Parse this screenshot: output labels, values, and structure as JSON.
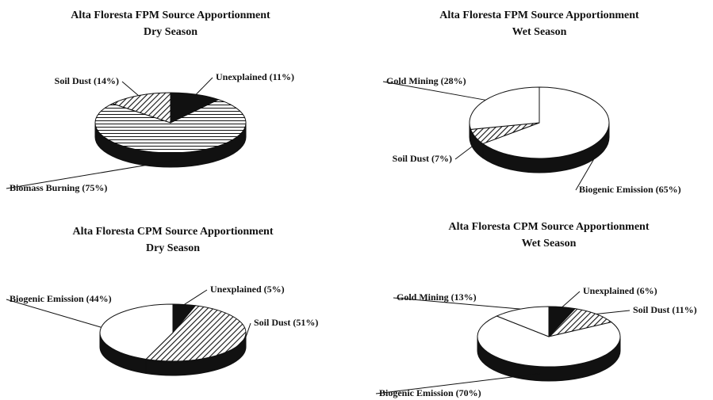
{
  "chart_data": [
    {
      "type": "pie",
      "title": "Alta Floresta FPM Source Apportionment",
      "subtitle": "Dry Season",
      "values": [
        11,
        75,
        14
      ],
      "value_labels": [
        "Unexplained (11%)",
        "Biomass Burning (75%)",
        "Soil Dust (14%)"
      ],
      "fills": [
        "black",
        "hlines",
        "hatch"
      ]
    },
    {
      "type": "pie",
      "title": "Alta Floresta FPM Source Apportionment",
      "subtitle": "Wet Season",
      "values": [
        65,
        7,
        28
      ],
      "value_labels": [
        "Biogenic Emission (65%)",
        "Soil Dust (7%)",
        "Gold Mining (28%)"
      ],
      "fills": [
        "white",
        "hatch",
        "white"
      ]
    },
    {
      "type": "pie",
      "title": "Alta Floresta CPM Source Apportionment",
      "subtitle": "Dry Season",
      "values": [
        5,
        51,
        44
      ],
      "value_labels": [
        "Unexplained (5%)",
        "Soil Dust (51%)",
        "Biogenic Emission (44%)"
      ],
      "fills": [
        "black",
        "hatch",
        "white"
      ]
    },
    {
      "type": "pie",
      "title": "Alta Floresta CPM Source Apportionment",
      "subtitle": "Wet Season",
      "values": [
        6,
        11,
        70,
        13
      ],
      "value_labels": [
        "Unexplained (6%)",
        "Soil Dust (11%)",
        "Biogenic Emission (70%)",
        "Gold Mining (13%)"
      ],
      "fills": [
        "black",
        "hatch",
        "white",
        "white"
      ]
    }
  ]
}
